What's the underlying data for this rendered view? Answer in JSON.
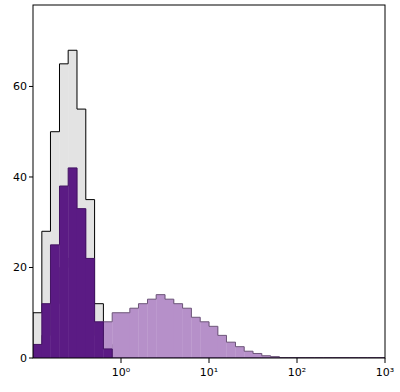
{
  "chart_data": {
    "type": "histogram",
    "log": "x",
    "bins": [
      0.1,
      0.126,
      0.158,
      0.2,
      0.251,
      0.316,
      0.398,
      0.501,
      0.631,
      0.794,
      1,
      1.26,
      1.58,
      2,
      2.51,
      3.16,
      3.98,
      5.01,
      6.31,
      7.94,
      10,
      12.6,
      15.8,
      20,
      25.1,
      31.6,
      39.8,
      50.1,
      63.1,
      79.4,
      100,
      126,
      158,
      200,
      251,
      316,
      398,
      501,
      631,
      794,
      1000
    ],
    "series": [
      {
        "color": "#e3e3e3",
        "values": [
          10,
          28,
          50,
          65,
          68,
          55,
          35,
          12,
          3,
          0.5,
          0,
          0,
          0,
          0,
          0,
          0,
          0,
          0,
          0,
          0,
          0,
          0,
          0,
          0,
          0,
          0,
          0,
          0,
          0,
          0,
          0,
          0,
          0,
          0,
          0,
          0,
          0,
          0,
          0,
          0
        ]
      },
      {
        "color": "#b690c9",
        "values": [
          1,
          5,
          12,
          20,
          22,
          18,
          12,
          5,
          8,
          10,
          10,
          11,
          12,
          13,
          14,
          13,
          12,
          11,
          9,
          8,
          7,
          5,
          3.5,
          2.5,
          1.5,
          1,
          0.5,
          0.3,
          0,
          0,
          0,
          0,
          0,
          0,
          0,
          0,
          0,
          0,
          0,
          0
        ]
      },
      {
        "color": "#5b1b84",
        "values": [
          3,
          12,
          25,
          38,
          42,
          33,
          22,
          8,
          2,
          0,
          0,
          0,
          0,
          0,
          0,
          0,
          0,
          0,
          0,
          0,
          0,
          0,
          0,
          0,
          0,
          0,
          0,
          0,
          0,
          0,
          0,
          0,
          0,
          0,
          0,
          0,
          0,
          0,
          0,
          0
        ]
      }
    ],
    "xlim": [
      0.1,
      1000
    ],
    "xticks": [
      {
        "value": 1,
        "label": "10⁰"
      },
      {
        "value": 10,
        "label": "10¹"
      },
      {
        "value": 100,
        "label": "10²"
      },
      {
        "value": 1000,
        "label": "10³"
      }
    ],
    "ylim": [
      0,
      78
    ],
    "yticks": [
      0,
      20,
      40,
      60
    ]
  }
}
